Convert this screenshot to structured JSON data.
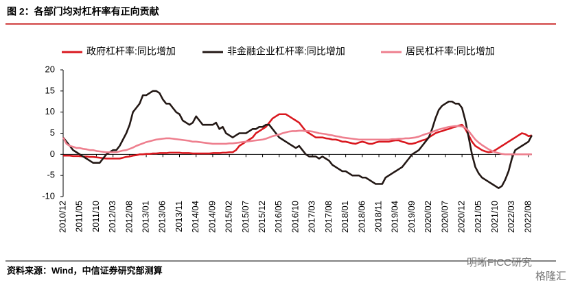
{
  "chart_data": {
    "type": "line",
    "title": "图 2：各部门均对杠杆率有正向贡献",
    "source": "资料来源：Wind，中信证券研究部测算",
    "watermark": [
      "明晰FICC研究",
      "格隆汇"
    ],
    "categories": [
      "2010/12",
      null,
      null,
      null,
      null,
      "2011/05",
      null,
      null,
      null,
      null,
      "2011/10",
      null,
      null,
      null,
      null,
      "2012/03",
      null,
      null,
      null,
      null,
      "2012/08",
      null,
      null,
      null,
      null,
      "2013/01",
      null,
      null,
      null,
      null,
      "2013/06",
      null,
      null,
      null,
      null,
      "2013/11",
      null,
      null,
      null,
      null,
      "2014/04",
      null,
      null,
      null,
      null,
      "2014/09",
      null,
      null,
      null,
      null,
      "2015/02",
      null,
      null,
      null,
      null,
      "2015/07",
      null,
      null,
      null,
      null,
      "2015/12",
      null,
      null,
      null,
      null,
      "2016/05",
      null,
      null,
      null,
      null,
      "2016/10",
      null,
      null,
      null,
      null,
      "2017/03",
      null,
      null,
      null,
      null,
      "2017/08",
      null,
      null,
      null,
      null,
      "2018/01",
      null,
      null,
      null,
      null,
      "2018/06",
      null,
      null,
      null,
      null,
      "2018/11",
      null,
      null,
      null,
      null,
      "2019/04",
      null,
      null,
      null,
      null,
      "2019/09",
      null,
      null,
      null,
      null,
      "2020/02",
      null,
      null,
      null,
      null,
      "2020/07",
      null,
      null,
      null,
      null,
      "2020/12",
      null,
      null,
      null,
      null,
      "2021/05",
      null,
      null,
      null,
      null,
      "2021/10",
      null,
      null,
      null,
      null,
      "2022/03",
      null,
      null,
      null,
      null,
      "2022/08",
      null
    ],
    "series": [
      {
        "name": "政府杠杆率:同比增加",
        "color": "#d9181f",
        "values": [
          -0.3,
          -0.3,
          -0.3,
          -0.4,
          -0.4,
          -0.4,
          -0.5,
          -0.5,
          -0.6,
          -0.6,
          -0.7,
          -0.8,
          -0.9,
          -1,
          -1,
          -1,
          -1,
          -1,
          -0.8,
          -0.6,
          -0.5,
          -0.3,
          -0.2,
          0,
          0,
          0.1,
          0.1,
          0.2,
          0.2,
          0.3,
          0.3,
          0.3,
          0.4,
          0.4,
          0.4,
          0.4,
          0.3,
          0.3,
          0.3,
          0.2,
          0.2,
          0.2,
          0.2,
          0.2,
          0.2,
          0.3,
          0.3,
          0.3,
          0.4,
          0.4,
          0.5,
          0.5,
          1,
          2,
          2.5,
          3,
          3.5,
          4,
          5,
          5.5,
          6,
          6.5,
          7.5,
          8.5,
          9,
          9.5,
          9.5,
          9.5,
          9,
          8.5,
          8,
          7.5,
          6.5,
          5.5,
          5,
          4.5,
          4,
          4,
          4,
          3.8,
          3.7,
          3.5,
          3.5,
          3.3,
          3,
          3,
          2.8,
          2.6,
          2.5,
          2.8,
          3,
          2.8,
          2.5,
          2.5,
          2.8,
          3,
          3,
          3,
          3,
          3.2,
          3.3,
          3.3,
          3,
          2.8,
          2.5,
          2.5,
          2.7,
          3,
          3.3,
          3.5,
          4,
          4.5,
          5,
          5.3,
          5.5,
          5.8,
          6,
          6.3,
          6.5,
          6.8,
          7,
          6,
          4.5,
          3,
          2,
          1.5,
          1,
          0.7,
          0.5,
          0.6,
          1,
          1.5,
          2,
          2.5,
          3,
          3.5,
          4,
          4.5,
          5,
          4.8,
          4.3,
          4.5
        ]
      },
      {
        "name": "非金融企业杠杆率:同比增加",
        "color": "#231815",
        "values": [
          4,
          3,
          2,
          1,
          0.5,
          0,
          -0.5,
          -1,
          -1.5,
          -2,
          -2,
          -2,
          -1,
          0,
          0.5,
          1,
          1,
          2,
          3.5,
          5,
          7,
          10,
          11,
          12,
          14,
          14,
          14.5,
          15,
          15,
          14.5,
          13,
          12,
          12,
          11,
          10,
          9.5,
          8,
          7.5,
          7,
          7.5,
          9,
          8,
          7,
          7,
          7,
          7,
          7.5,
          6,
          6.5,
          5,
          4.5,
          4,
          4.5,
          5,
          5,
          5,
          5.5,
          6,
          6,
          6.5,
          6.5,
          7,
          7,
          6,
          5,
          4,
          3.5,
          3,
          2.5,
          2,
          1.5,
          2,
          1,
          0,
          -0.5,
          -0.5,
          -0.5,
          -1,
          -0.5,
          -1,
          -1.5,
          -2.5,
          -3,
          -3.5,
          -4,
          -4,
          -4.5,
          -5,
          -5,
          -5,
          -5.5,
          -5.5,
          -6,
          -6.5,
          -7,
          -7,
          -7,
          -5.5,
          -5,
          -4.5,
          -4,
          -3.5,
          -3,
          -2,
          -1,
          0,
          0.5,
          1,
          2,
          3,
          4,
          6,
          8.5,
          10.5,
          11.5,
          12,
          12.5,
          12.5,
          12,
          12,
          11,
          8,
          4,
          0,
          -3,
          -4.5,
          -5.5,
          -6,
          -6.5,
          -7,
          -7.5,
          -8,
          -7.5,
          -6,
          -4,
          -1,
          1,
          1.5,
          2,
          2.5,
          3,
          4.5
        ]
      },
      {
        "name": "居民杠杆率:同比增加",
        "color": "#ee7f8e",
        "values": [
          4,
          2.5,
          2,
          1.8,
          1.5,
          1.5,
          1.3,
          1.2,
          1,
          1,
          0.8,
          0.7,
          0.6,
          0.5,
          0.5,
          0.5,
          0.5,
          0.7,
          0.9,
          1,
          1.3,
          1.6,
          2,
          2.3,
          2.6,
          2.9,
          3.1,
          3.3,
          3.5,
          3.6,
          3.7,
          3.8,
          3.8,
          3.7,
          3.6,
          3.5,
          3.4,
          3.3,
          3.2,
          3,
          3,
          2.9,
          2.8,
          2.7,
          2.6,
          2.5,
          2.5,
          2.5,
          2.5,
          2.5,
          2.6,
          2.6,
          2.7,
          2.8,
          2.9,
          3,
          3.1,
          3.2,
          3.3,
          3.4,
          3.5,
          3.7,
          4,
          4.3,
          4.5,
          4.7,
          5,
          5.2,
          5.4,
          5.5,
          5.5,
          5.6,
          5.6,
          5.5,
          5.5,
          5.4,
          5.2,
          5,
          4.9,
          4.8,
          4.6,
          4.5,
          4.3,
          4.2,
          4,
          3.9,
          3.8,
          3.7,
          3.6,
          3.5,
          3.5,
          3.5,
          3.5,
          3.5,
          3.5,
          3.5,
          3.5,
          3.5,
          3.5,
          3.6,
          3.6,
          3.7,
          3.7,
          3.8,
          3.8,
          3.9,
          4,
          4.2,
          4.5,
          4.8,
          5,
          5.3,
          5.6,
          5.9,
          6.1,
          6.3,
          6.5,
          6.6,
          6.7,
          6.7,
          6.6,
          6.3,
          5.5,
          4.5,
          3.5,
          2.8,
          2.2,
          1.7,
          1.2,
          0.8,
          0.5,
          0.3,
          0.1,
          0,
          0,
          0,
          0,
          0,
          0,
          0,
          0,
          0
        ]
      }
    ],
    "ylim": [
      -10,
      20
    ],
    "yticks": [
      -10,
      -5,
      0,
      5,
      10,
      15,
      20
    ],
    "legend": "top",
    "grid": false
  }
}
